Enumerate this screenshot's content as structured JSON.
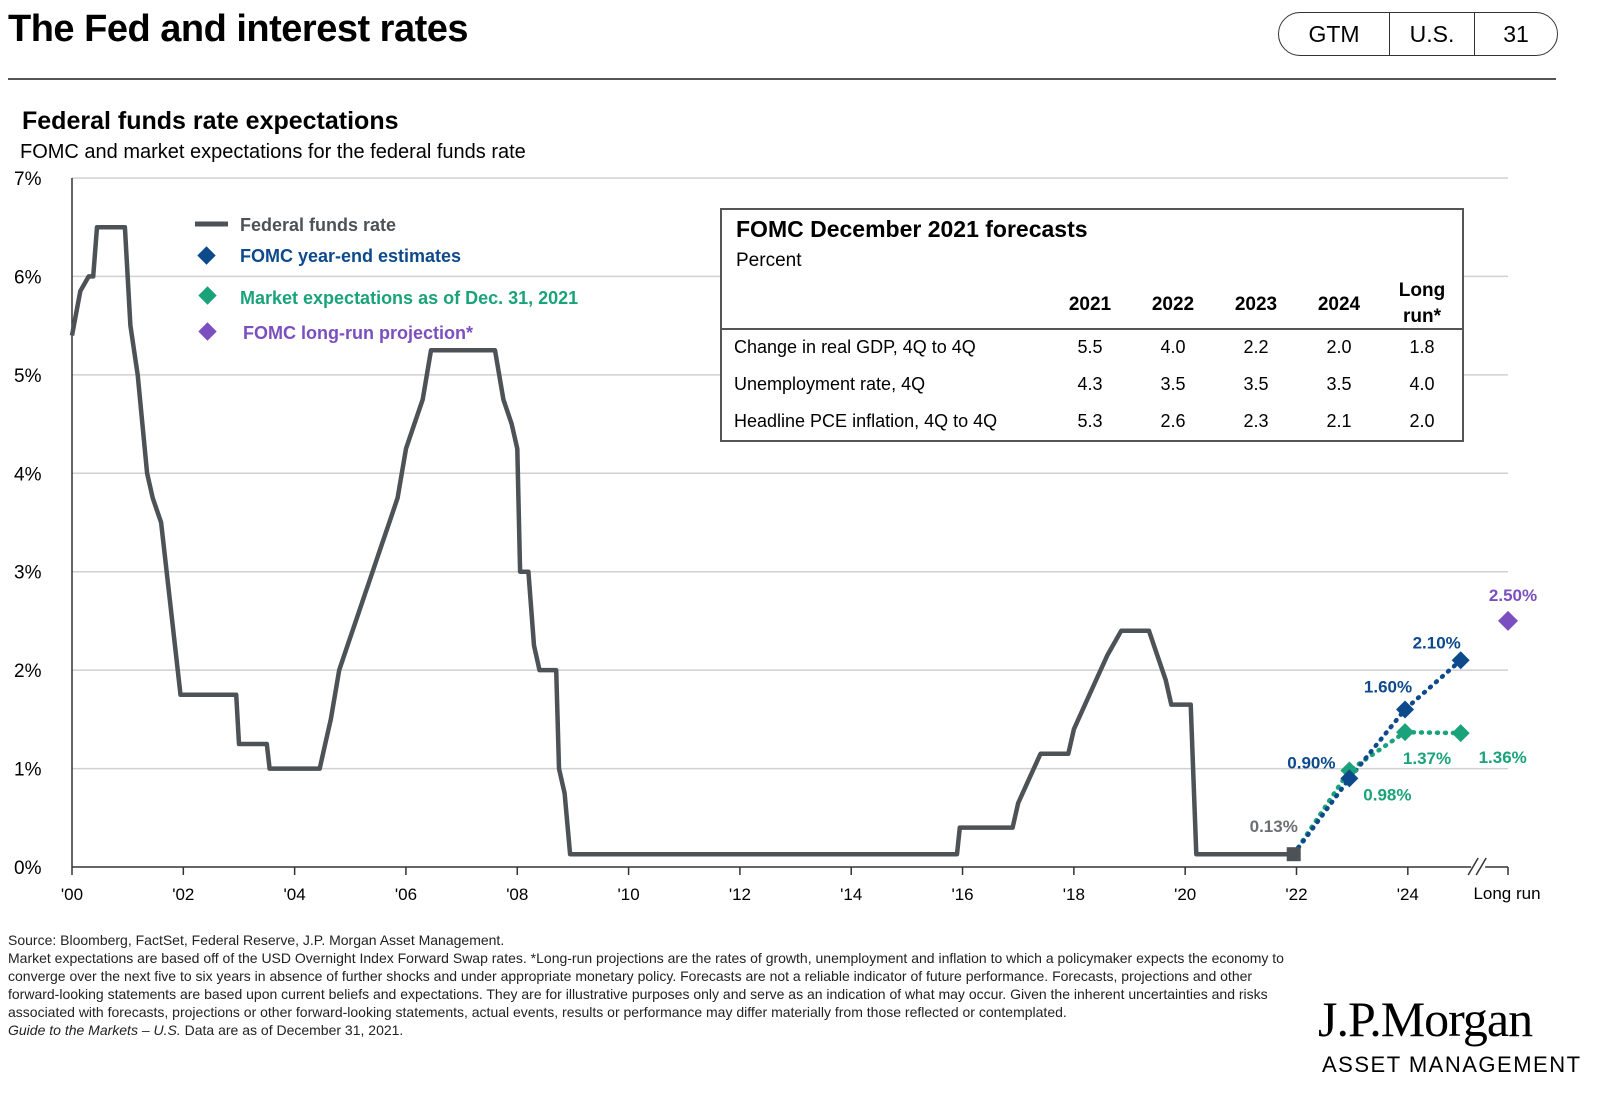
{
  "header": {
    "title": "The Fed and interest rates",
    "tag_gtm": "GTM",
    "tag_region": "U.S.",
    "tag_page": "31"
  },
  "chart_title": "Federal funds rate expectations",
  "chart_subtitle": "FOMC and market expectations for the federal funds rate",
  "legend": {
    "fed_funds": "Federal funds rate",
    "fomc": "FOMC  year-end estimates",
    "market": "Market expectations as of Dec. 31, 2021",
    "longrun": "FOMC  long-run projection*"
  },
  "colors": {
    "fed_funds": "#4d5257",
    "fomc": "#0d4a8c",
    "market": "#1aa37a",
    "longrun": "#7b4fbf",
    "grid": "#d0d0d0"
  },
  "chart_data": {
    "type": "line",
    "title": "Federal funds rate expectations",
    "subtitle": "FOMC and market expectations for the federal funds rate",
    "ylim": [
      0,
      7
    ],
    "xlim": [
      2000,
      2025.8
    ],
    "y_tick_labels": [
      "0%",
      "1%",
      "2%",
      "3%",
      "4%",
      "5%",
      "6%",
      "7%"
    ],
    "x_ticks": [
      2000,
      2002,
      2004,
      2006,
      2008,
      2010,
      2012,
      2014,
      2016,
      2018,
      2020,
      2022,
      2024
    ],
    "x_tick_labels": [
      "'00",
      "'02",
      "'04",
      "'06",
      "'08",
      "'10",
      "'12",
      "'14",
      "'16",
      "'18",
      "'20",
      "'22",
      "'24"
    ],
    "long_run_label": "Long run",
    "series": [
      {
        "name": "Federal funds rate",
        "points": [
          [
            2000.0,
            5.4
          ],
          [
            2000.15,
            5.85
          ],
          [
            2000.3,
            6.0
          ],
          [
            2000.38,
            6.0
          ],
          [
            2000.45,
            6.5
          ],
          [
            2000.95,
            6.5
          ],
          [
            2001.05,
            5.5
          ],
          [
            2001.18,
            5.0
          ],
          [
            2001.35,
            4.0
          ],
          [
            2001.45,
            3.75
          ],
          [
            2001.6,
            3.5
          ],
          [
            2001.8,
            2.5
          ],
          [
            2001.95,
            1.75
          ],
          [
            2002.95,
            1.75
          ],
          [
            2003.0,
            1.25
          ],
          [
            2003.5,
            1.25
          ],
          [
            2003.55,
            1.0
          ],
          [
            2004.45,
            1.0
          ],
          [
            2004.55,
            1.25
          ],
          [
            2004.65,
            1.5
          ],
          [
            2004.8,
            2.0
          ],
          [
            2004.95,
            2.25
          ],
          [
            2005.1,
            2.5
          ],
          [
            2005.25,
            2.75
          ],
          [
            2005.4,
            3.0
          ],
          [
            2005.55,
            3.25
          ],
          [
            2005.7,
            3.5
          ],
          [
            2005.85,
            3.75
          ],
          [
            2006.0,
            4.25
          ],
          [
            2006.15,
            4.5
          ],
          [
            2006.3,
            4.75
          ],
          [
            2006.45,
            5.25
          ],
          [
            2007.6,
            5.25
          ],
          [
            2007.75,
            4.75
          ],
          [
            2007.9,
            4.5
          ],
          [
            2008.0,
            4.25
          ],
          [
            2008.05,
            3.0
          ],
          [
            2008.2,
            3.0
          ],
          [
            2008.3,
            2.25
          ],
          [
            2008.4,
            2.0
          ],
          [
            2008.7,
            2.0
          ],
          [
            2008.75,
            1.0
          ],
          [
            2008.85,
            0.75
          ],
          [
            2008.95,
            0.13
          ],
          [
            2015.9,
            0.13
          ],
          [
            2015.95,
            0.4
          ],
          [
            2016.9,
            0.4
          ],
          [
            2017.0,
            0.65
          ],
          [
            2017.2,
            0.9
          ],
          [
            2017.4,
            1.15
          ],
          [
            2017.9,
            1.15
          ],
          [
            2018.0,
            1.4
          ],
          [
            2018.2,
            1.65
          ],
          [
            2018.4,
            1.9
          ],
          [
            2018.6,
            2.15
          ],
          [
            2018.85,
            2.4
          ],
          [
            2019.35,
            2.4
          ],
          [
            2019.5,
            2.15
          ],
          [
            2019.65,
            1.9
          ],
          [
            2019.75,
            1.65
          ],
          [
            2020.1,
            1.65
          ],
          [
            2020.2,
            0.13
          ],
          [
            2021.95,
            0.13
          ]
        ]
      },
      {
        "name": "FOMC year-end estimates",
        "points": [
          [
            2021.95,
            0.13
          ],
          [
            2022.95,
            0.9
          ],
          [
            2023.95,
            1.6
          ],
          [
            2024.95,
            2.1
          ]
        ],
        "labels": [
          "0.90%",
          "1.60%",
          "2.10%"
        ]
      },
      {
        "name": "Market expectations as of Dec. 31, 2021",
        "points": [
          [
            2021.95,
            0.13
          ],
          [
            2022.95,
            0.98
          ],
          [
            2023.95,
            1.37
          ],
          [
            2024.95,
            1.36
          ]
        ],
        "labels": [
          "0.98%",
          "1.37%",
          "1.36%"
        ]
      },
      {
        "name": "FOMC long-run projection*",
        "points": [
          [
            2025.8,
            2.5
          ]
        ],
        "labels": [
          "2.50%"
        ]
      }
    ],
    "current_point": {
      "x": 2021.95,
      "y": 0.13,
      "label": "0.13%"
    }
  },
  "forecast_table": {
    "title": "FOMC December 2021 forecasts",
    "subtitle": "Percent",
    "headers": [
      "2021",
      "2022",
      "2023",
      "2024"
    ],
    "header_long_run_1": "Long",
    "header_long_run_2": "run*",
    "rows": [
      {
        "label": "Change in real GDP, 4Q to 4Q",
        "values": [
          "5.5",
          "4.0",
          "2.2",
          "2.0",
          "1.8"
        ]
      },
      {
        "label": "Unemployment rate, 4Q",
        "values": [
          "4.3",
          "3.5",
          "3.5",
          "3.5",
          "4.0"
        ]
      },
      {
        "label": "Headline PCE inflation, 4Q to 4Q",
        "values": [
          "5.3",
          "2.6",
          "2.3",
          "2.1",
          "2.0"
        ]
      }
    ]
  },
  "footnotes": {
    "source": "Source: Bloomberg, FactSet, Federal Reserve, J.P. Morgan Asset Management.",
    "body": "Market expectations are based off of the USD Overnight Index Forward Swap rates. *Long-run projections are the rates of growth, unemployment and inflation to which a policymaker expects the economy to converge over the next five to six years in absence of further shocks and under appropriate monetary policy. Forecasts are not a reliable indicator of future performance. Forecasts, projections and other forward-looking statements are based upon current beliefs and expectations. They are for illustrative purposes only and serve as an indication of what may occur. Given the inherent uncertainties and risks associated with forecasts, projections or other forward-looking statements, actual events, results or performance may differ materially from those reflected or contemplated.",
    "guide_italic": "Guide to the Markets – U.S.",
    "guide_rest": " Data are as of December 31, 2021."
  },
  "logo": {
    "name": "J.P.Morgan",
    "sub": "ASSET MANAGEMENT"
  }
}
